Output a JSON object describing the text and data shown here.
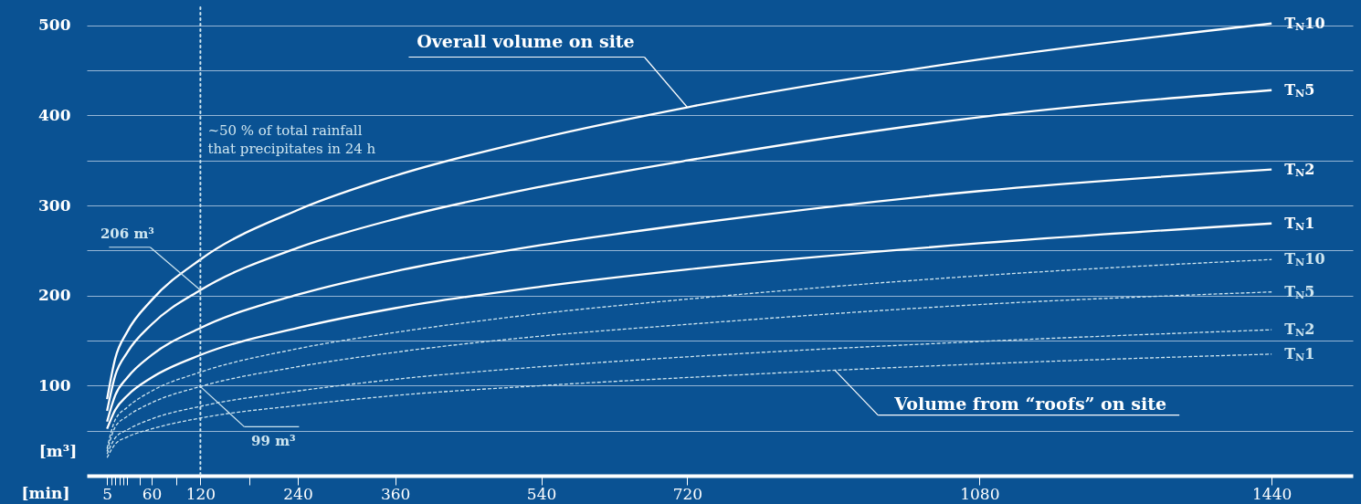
{
  "chart_data": {
    "type": "line",
    "xlabel": "[min]",
    "ylabel": "[m³]",
    "x": [
      5,
      15,
      30,
      60,
      120,
      240,
      360,
      540,
      720,
      1080,
      1440
    ],
    "series": [
      {
        "name": "T$_{N}$10",
        "color": "#ffffff",
        "values": [
          85,
          130,
          160,
          195,
          240,
          295,
          333,
          375,
          409,
          462,
          502
        ]
      },
      {
        "name": "T$_{N}$5",
        "color": "#ffffff",
        "values": [
          72,
          111,
          137,
          168,
          206,
          253,
          285,
          321,
          350,
          398,
          428
        ]
      },
      {
        "name": "T$_{N}$2",
        "color": "#ffffff",
        "values": [
          60,
          89,
          109,
          134,
          164,
          201,
          227,
          256,
          279,
          316,
          340
        ]
      },
      {
        "name": "T$_{N}$1",
        "color": "#ffffff",
        "values": [
          52,
          73,
          89,
          109,
          134,
          164,
          186,
          210,
          229,
          258,
          280
        ]
      },
      {
        "name": "T$_{N}$10",
        "color": "#cfe6f0",
        "line_style": "dashed",
        "values": [
          30,
          62,
          76,
          94,
          115,
          141,
          159,
          180,
          196,
          222,
          240
        ]
      },
      {
        "name": "T$_{N}$5",
        "color": "#cfe6f0",
        "line_style": "dashed",
        "values": [
          27,
          54,
          66,
          81,
          99,
          121,
          137,
          155,
          168,
          190,
          204
        ]
      },
      {
        "name": "T$_{N}$2",
        "color": "#cfe6f0",
        "line_style": "dashed",
        "values": [
          24,
          42,
          51,
          63,
          77,
          94,
          107,
          121,
          132,
          149,
          162
        ]
      },
      {
        "name": "T$_{N}$1",
        "color": "#cfe6f0",
        "line_style": "dashed",
        "values": [
          20,
          35,
          43,
          52,
          64,
          78,
          89,
          100,
          109,
          124,
          135
        ]
      }
    ],
    "xlim": [
      -20,
      1540
    ],
    "xticks": [
      5,
      {
        "value": 10,
        "label": null
      },
      {
        "value": 15,
        "label": null
      },
      {
        "value": 20,
        "label": null
      },
      {
        "value": 25,
        "label": null
      },
      {
        "value": 30,
        "label": null
      },
      {
        "value": 45,
        "label": null
      },
      60,
      {
        "value": 90,
        "label": null
      },
      120,
      {
        "value": 180,
        "label": null
      },
      240,
      360,
      540,
      720,
      1080,
      1440
    ],
    "ylim": [
      0,
      520
    ],
    "yticks": [
      {
        "value": 50,
        "label": null
      },
      100,
      {
        "value": 150,
        "label": null
      },
      200,
      {
        "value": 250,
        "label": null
      },
      300,
      {
        "value": 350,
        "label": null
      },
      400,
      {
        "value": 450,
        "label": null
      },
      500
    ],
    "grid": "y",
    "legend": false,
    "ref_lines": [
      {
        "axis": "x",
        "value": 120,
        "label": "~50 % of total rainfall\nthat precipitates in 24 h",
        "color": "#cfe6f0",
        "line_style": "dotted"
      }
    ],
    "annotations": [
      {
        "text": "206 m³",
        "x": 120,
        "y": 206
      },
      {
        "text": "99 m³",
        "x": 120,
        "y": 99
      },
      {
        "text": "Overall volume on site",
        "x": 720,
        "y": 409
      },
      {
        "text": "Volume from “roofs” on site",
        "x": 902,
        "y": 117
      }
    ]
  }
}
